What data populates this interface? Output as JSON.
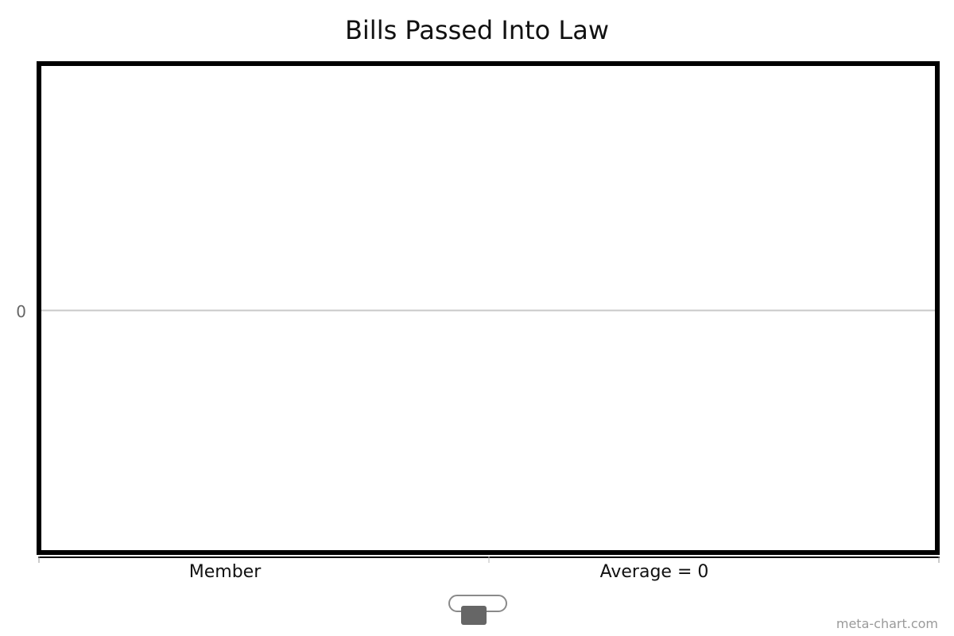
{
  "chart_data": {
    "type": "bar",
    "title": "Bills Passed Into Law",
    "categories": [
      "Member",
      "Average = 0"
    ],
    "series": [
      {
        "values": [
          0,
          0
        ]
      }
    ],
    "y_ticks": [
      "0"
    ],
    "ylim": [
      -1,
      1
    ],
    "grid": true,
    "legend": "bottom-center"
  },
  "credit": "meta-chart.com",
  "colors": {
    "frame": "#000000",
    "gridline": "#c8c8c8",
    "legend_swatch": "#666666",
    "legend_toggle_border": "#8a8a8a"
  }
}
